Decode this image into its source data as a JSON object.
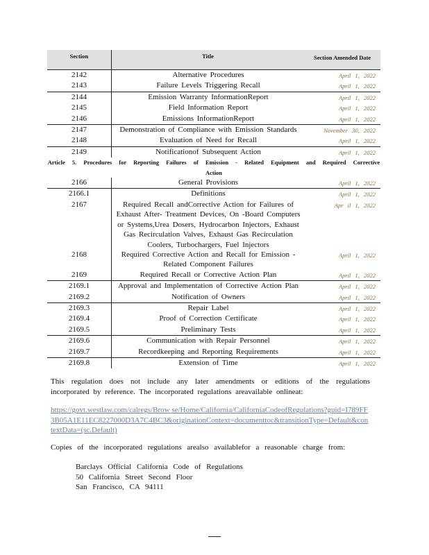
{
  "table": {
    "headers": {
      "section": "Section",
      "title": "Title",
      "date": "Section Amended Date"
    },
    "groups": [
      {
        "rows": [
          {
            "section": "2142",
            "title": "Alternative Procedures",
            "date": "April 1, 2022"
          },
          {
            "section": "2143",
            "title": "Failure Levels Triggering Recall",
            "date": "April 1, 2022"
          }
        ]
      },
      {
        "rows": [
          {
            "section": "2144",
            "title": "Emission Warranty InformationReport",
            "date": "April 1, 2022"
          },
          {
            "section": "2145",
            "title": "Field Information Report",
            "date": "April 1, 2022"
          },
          {
            "section": "2146",
            "title": "Emissions InformationReport",
            "date": "April 1, 2022"
          }
        ]
      },
      {
        "rows": [
          {
            "section": "2147",
            "title": "Demonstration of Compliance with Emission Standards",
            "date": "November 30, 2022"
          },
          {
            "section": "2148",
            "title": "Evaluation of Need for Recall",
            "date": "April 1, 2022"
          }
        ]
      },
      {
        "rows": [
          {
            "section": "2149",
            "title": "Notificationof Subsequent Action",
            "date": "April 1, 2022"
          }
        ],
        "article": "Article 5. Procedures for Reporting Failures of Emission - Related Equipment and Required Corrective Action",
        "after": [
          {
            "section": "2166",
            "title": "General Provisions",
            "date": "April 1, 2022"
          }
        ]
      },
      {
        "rows": [
          {
            "section": "2166.1",
            "title": "Definitions",
            "date": "April 1, 2022"
          },
          {
            "section": "2167",
            "title": "Required Recall andCorrective Action for Failures of Exhaust After- Treatment Devices, On -Board Computers or Systems,Urea Dosers, Hydrocarbon Injectors, Exhaust Gas Recirculation Valves, Exhaust Gas Recirculation Coolers, Turbochargers, Fuel Injectors",
            "date": "Apr il 1, 2022"
          },
          {
            "section": "2168",
            "title": "Required Corrective Action and Recall for Emission - Related Component Failures",
            "date": "April 1, 2022"
          },
          {
            "section": "2169",
            "title": "Required Recall or Corrective Action Plan",
            "date": "April 1, 2022"
          }
        ]
      },
      {
        "rows": [
          {
            "section": "2169.1",
            "title": "Approval and Implementation of Corrective Action Plan",
            "date": "April 1, 2022"
          },
          {
            "section": "2169.2",
            "title": "Notification of Owners",
            "date": "April 1, 2022"
          }
        ]
      },
      {
        "rows": [
          {
            "section": "2169.3",
            "title": "Repair Label",
            "date": "April 1, 2022"
          },
          {
            "section": "2169.4",
            "title": "Proof of Correction Certificate",
            "date": "April 1, 2022"
          },
          {
            "section": "2169.5",
            "title": "Preliminary Tests",
            "date": "April 1, 2022"
          }
        ]
      },
      {
        "rows": [
          {
            "section": "2169.6",
            "title": "Communication with Repair Personnel",
            "date": "April 1, 2022"
          },
          {
            "section": "2169.7",
            "title": "Recordkeeping and Reporting Requirements",
            "date": "April 1, 2022"
          }
        ]
      },
      {
        "rows": [
          {
            "section": "2169.8",
            "title": "Extension of Time",
            "date": "April 1, 2022"
          }
        ]
      }
    ]
  },
  "paragraph1": "This regulation does not include any later amendments or editions of the regulations incorporated by reference. The incorporated regulations areavailable onlineat:",
  "link": "https://govt.westlaw.com/calregs/Brow se/Home/California/CaliforniaCodeofRegulations?guid=I789FF3B05A1E11EC8227000D3A7C4BC3&originationContext=documenttoc&transitionType=Default&contextData=(sc.Default)",
  "paragraph2": "Copies of the incorporated regulations arealso availablefor a reasonable charge from:",
  "address": [
    "Barclays Official California Code of Regulations",
    "50 California Street Second Floor",
    "San Francisco, CA 94111"
  ],
  "colors": {
    "date": "#8a6d3b",
    "link": "#6a7f99",
    "header_bg": "#e0e0e0"
  }
}
